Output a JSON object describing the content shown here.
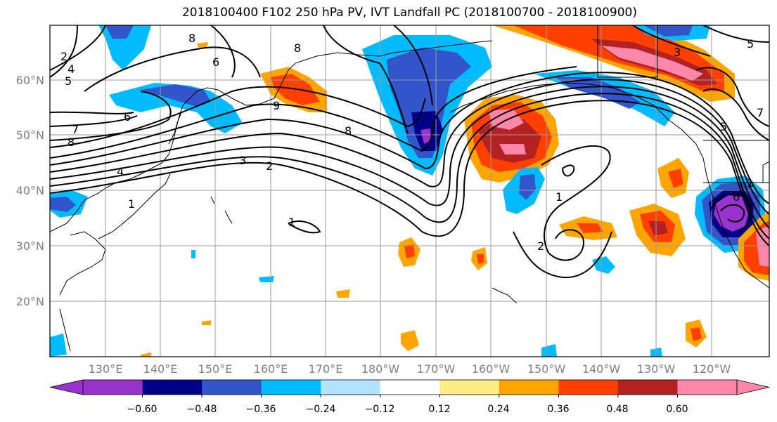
{
  "title": "2018100400 F102 250 hPa PV, IVT Landfall PC (2018100700 - 2018100900)",
  "lat_labels": [
    "60°N",
    "50°N",
    "40°N",
    "30°N",
    "20°N"
  ],
  "lon_labels": [
    "130°E",
    "140°E",
    "150°E",
    "160°E",
    "170°E",
    "180°W",
    "170°W",
    "160°W",
    "150°W",
    "140°W",
    "130°W",
    "120°W"
  ],
  "contour_labels": [
    "2",
    "4",
    "5",
    "8",
    "6",
    "6",
    "7",
    "8",
    "9",
    "8",
    "3",
    "2",
    "4",
    "1",
    "1",
    "1",
    "2",
    "8",
    "7",
    "5",
    "5",
    "3",
    "1",
    "6"
  ],
  "colorbar": {
    "tick_labels": [
      "−0.60",
      "−0.48",
      "−0.36",
      "−0.24",
      "−0.12",
      "0.12",
      "0.24",
      "0.36",
      "0.48",
      "0.60"
    ],
    "colors": [
      "#9933cc",
      "#000088",
      "#3355cc",
      "#00bbff",
      "#b3e3ff",
      "#ffffff",
      "#ffee88",
      "#ffa500",
      "#ff4000",
      "#b22222",
      "#ff88aa"
    ]
  }
}
